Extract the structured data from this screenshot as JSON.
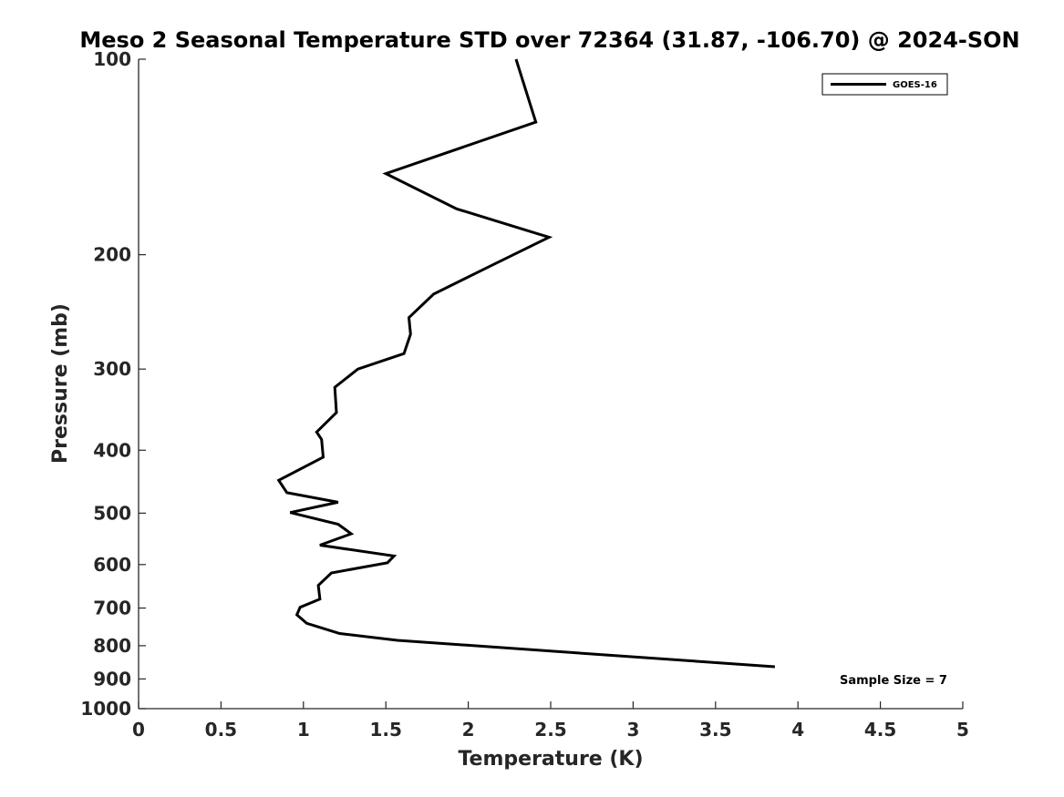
{
  "chart_data": {
    "type": "line",
    "title": "Meso 2 Seasonal Temperature STD over 72364 (31.87, -106.70) @ 2024-SON",
    "xlabel": "Temperature (K)",
    "ylabel": "Pressure (mb)",
    "xlim": [
      0,
      5
    ],
    "ylim": [
      100,
      1000
    ],
    "yscale": "log",
    "y_reversed": true,
    "xticks": [
      "0",
      "0.5",
      "1",
      "1.5",
      "2",
      "2.5",
      "3",
      "3.5",
      "4",
      "4.5",
      "5"
    ],
    "yticks": [
      "100",
      "200",
      "300",
      "400",
      "500",
      "600",
      "700",
      "800",
      "900",
      "1000"
    ],
    "grid": false,
    "legend_position": "top-right",
    "annotation": "Sample Size = 7",
    "series": [
      {
        "name": "GOES-16",
        "color": "#000000",
        "points": [
          {
            "x": 2.29,
            "p": 100
          },
          {
            "x": 2.41,
            "p": 125
          },
          {
            "x": 1.5,
            "p": 150
          },
          {
            "x": 1.93,
            "p": 170
          },
          {
            "x": 2.49,
            "p": 188
          },
          {
            "x": 2.12,
            "p": 209
          },
          {
            "x": 1.79,
            "p": 230
          },
          {
            "x": 1.64,
            "p": 250
          },
          {
            "x": 1.65,
            "p": 265
          },
          {
            "x": 1.61,
            "p": 284
          },
          {
            "x": 1.33,
            "p": 300
          },
          {
            "x": 1.19,
            "p": 320
          },
          {
            "x": 1.2,
            "p": 350
          },
          {
            "x": 1.08,
            "p": 375
          },
          {
            "x": 1.11,
            "p": 385
          },
          {
            "x": 1.12,
            "p": 410
          },
          {
            "x": 0.85,
            "p": 445
          },
          {
            "x": 0.9,
            "p": 465
          },
          {
            "x": 1.21,
            "p": 481
          },
          {
            "x": 0.92,
            "p": 499
          },
          {
            "x": 1.21,
            "p": 520
          },
          {
            "x": 1.29,
            "p": 538
          },
          {
            "x": 1.1,
            "p": 560
          },
          {
            "x": 1.55,
            "p": 582
          },
          {
            "x": 1.51,
            "p": 596
          },
          {
            "x": 1.17,
            "p": 618
          },
          {
            "x": 1.09,
            "p": 646
          },
          {
            "x": 1.1,
            "p": 678
          },
          {
            "x": 0.98,
            "p": 698
          },
          {
            "x": 0.96,
            "p": 717
          },
          {
            "x": 1.02,
            "p": 739
          },
          {
            "x": 1.22,
            "p": 766
          },
          {
            "x": 1.57,
            "p": 785
          },
          {
            "x": 3.86,
            "p": 862
          }
        ]
      }
    ]
  }
}
